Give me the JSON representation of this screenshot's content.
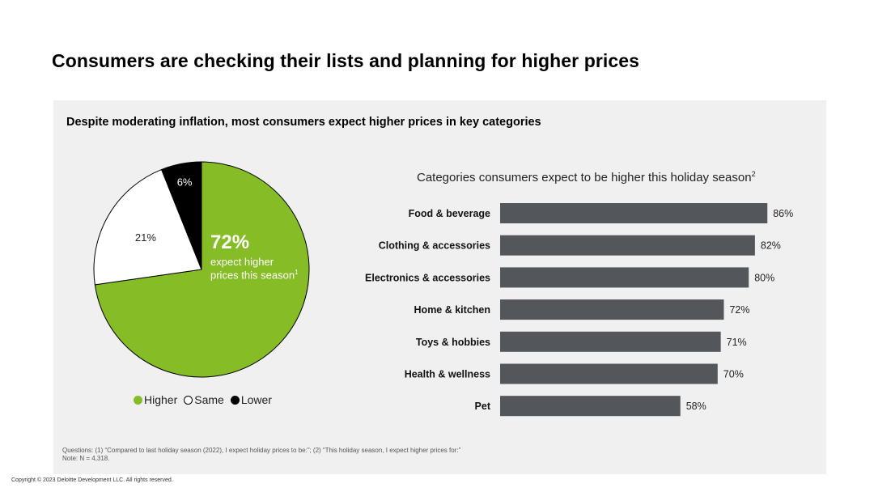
{
  "page": {
    "title": "Consumers are checking their lists and planning for higher prices",
    "subtitle": "Despite moderating inflation, most consumers expect higher prices in key categories",
    "copyright": "Copyright © 2023 Deloitte Development LLC. All rights reserved."
  },
  "footnotes": {
    "questions": "Questions: (1) “Compared to last holiday season (2022), I expect holiday prices to be:”; (2) “This holiday season, I expect higher prices for:”",
    "note": "Note: N = 4,318."
  },
  "pie": {
    "callout_value": "72%",
    "callout_text": "expect higher prices this season",
    "callout_sup": "1",
    "legend": [
      "Higher",
      "Same",
      "Lower"
    ]
  },
  "bar_chart": {
    "title": "Categories consumers expect to be higher this holiday season",
    "title_sup": "2"
  },
  "colors": {
    "higher": "#86bc25",
    "same": "#ffffff",
    "lower": "#000000",
    "bar": "#53565a",
    "panel": "#f0f0f0"
  },
  "chart_data": [
    {
      "type": "pie",
      "categories": [
        "Higher",
        "Same",
        "Lower"
      ],
      "values": [
        72,
        21,
        6
      ],
      "labels": [
        "72%",
        "21%",
        "6%"
      ]
    },
    {
      "type": "bar",
      "orientation": "horizontal",
      "title": "Categories consumers expect to be higher this holiday season",
      "categories": [
        "Food & beverage",
        "Clothing & accessories",
        "Electronics & accessories",
        "Home & kitchen",
        "Toys & hobbies",
        "Health & wellness",
        "Pet"
      ],
      "values": [
        86,
        82,
        80,
        72,
        71,
        70,
        58
      ],
      "labels": [
        "86%",
        "82%",
        "80%",
        "72%",
        "71%",
        "70%",
        "58%"
      ],
      "xlim": [
        0,
        100
      ],
      "grid": false
    }
  ]
}
